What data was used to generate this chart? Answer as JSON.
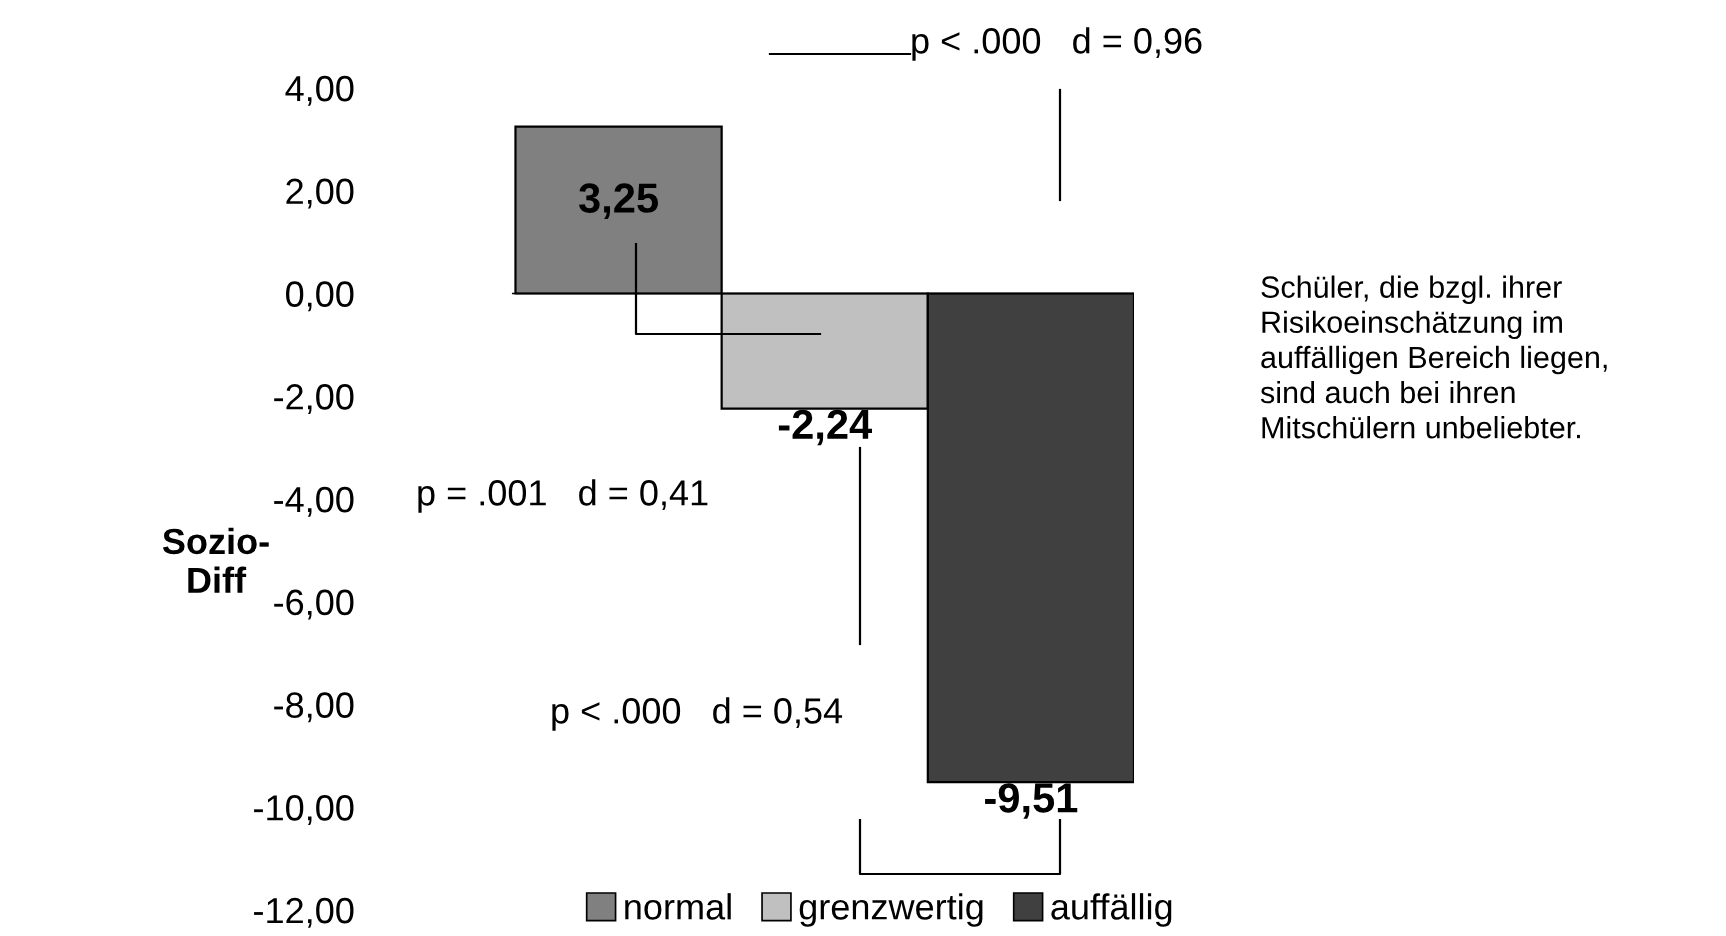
{
  "chart_data": {
    "type": "bar",
    "ylabel": "Sozio-\nDiff",
    "categories": [
      null,
      null,
      null
    ],
    "series": [
      {
        "name": "normal",
        "color": "#808080",
        "values": [
          3.25,
          null,
          null
        ],
        "value_labels": [
          "3,25",
          null,
          null
        ]
      },
      {
        "name": "grenzwertig",
        "color": "#c0c0c0",
        "values": [
          null,
          -2.24,
          null
        ],
        "value_labels": [
          null,
          "-2,24",
          null
        ]
      },
      {
        "name": "auffällig",
        "color": "#404040",
        "values": [
          null,
          null,
          -9.51
        ],
        "value_labels": [
          null,
          null,
          "-9,51"
        ]
      }
    ],
    "ylim": [
      -12,
      4
    ],
    "yticks": [
      {
        "value": -12,
        "label": "-12,00"
      },
      {
        "value": -10,
        "label": "-10,00"
      },
      {
        "value": -8,
        "label": "-8,00"
      },
      {
        "value": -6,
        "label": "-6,00"
      },
      {
        "value": -4,
        "label": "-4,00"
      },
      {
        "value": -2,
        "label": "-2,00"
      },
      {
        "value": 0,
        "label": "0,00"
      },
      {
        "value": 2,
        "label": "2,00"
      },
      {
        "value": 4,
        "label": "4,00"
      }
    ],
    "legend": "bottom",
    "stacked": true,
    "annotations": [
      "p < .000   d = 0,96",
      "p = .001   d = 0,41",
      "p < .000   d = 0,54",
      "Schüler, die bzgl. ihrer\nRisikoeinschätzung im\nauffälligen Bereich liegen,\nsind auch bei ihren\nMitschülern unbeliebter."
    ]
  }
}
